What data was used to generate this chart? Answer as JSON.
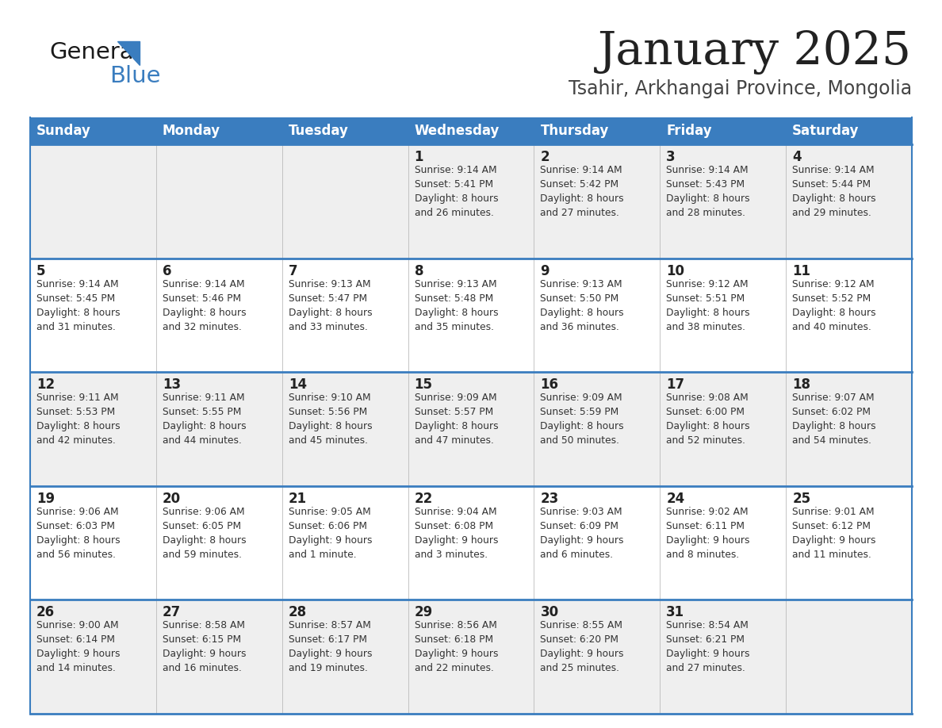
{
  "title": "January 2025",
  "subtitle": "Tsahir, Arkhangai Province, Mongolia",
  "days_of_week": [
    "Sunday",
    "Monday",
    "Tuesday",
    "Wednesday",
    "Thursday",
    "Friday",
    "Saturday"
  ],
  "header_bg": "#3a7dbf",
  "header_text": "#ffffff",
  "row_bg_odd": "#efefef",
  "row_bg_even": "#ffffff",
  "cell_text_color": "#333333",
  "day_num_color": "#222222",
  "border_color": "#3a7dbf",
  "title_color": "#222222",
  "subtitle_color": "#444444",
  "logo_general_color": "#1a1a1a",
  "logo_blue_color": "#3a7dbf",
  "logo_triangle_color": "#3a7dbf",
  "calendar": [
    [
      {
        "day": "",
        "info": ""
      },
      {
        "day": "",
        "info": ""
      },
      {
        "day": "",
        "info": ""
      },
      {
        "day": "1",
        "info": "Sunrise: 9:14 AM\nSunset: 5:41 PM\nDaylight: 8 hours\nand 26 minutes."
      },
      {
        "day": "2",
        "info": "Sunrise: 9:14 AM\nSunset: 5:42 PM\nDaylight: 8 hours\nand 27 minutes."
      },
      {
        "day": "3",
        "info": "Sunrise: 9:14 AM\nSunset: 5:43 PM\nDaylight: 8 hours\nand 28 minutes."
      },
      {
        "day": "4",
        "info": "Sunrise: 9:14 AM\nSunset: 5:44 PM\nDaylight: 8 hours\nand 29 minutes."
      }
    ],
    [
      {
        "day": "5",
        "info": "Sunrise: 9:14 AM\nSunset: 5:45 PM\nDaylight: 8 hours\nand 31 minutes."
      },
      {
        "day": "6",
        "info": "Sunrise: 9:14 AM\nSunset: 5:46 PM\nDaylight: 8 hours\nand 32 minutes."
      },
      {
        "day": "7",
        "info": "Sunrise: 9:13 AM\nSunset: 5:47 PM\nDaylight: 8 hours\nand 33 minutes."
      },
      {
        "day": "8",
        "info": "Sunrise: 9:13 AM\nSunset: 5:48 PM\nDaylight: 8 hours\nand 35 minutes."
      },
      {
        "day": "9",
        "info": "Sunrise: 9:13 AM\nSunset: 5:50 PM\nDaylight: 8 hours\nand 36 minutes."
      },
      {
        "day": "10",
        "info": "Sunrise: 9:12 AM\nSunset: 5:51 PM\nDaylight: 8 hours\nand 38 minutes."
      },
      {
        "day": "11",
        "info": "Sunrise: 9:12 AM\nSunset: 5:52 PM\nDaylight: 8 hours\nand 40 minutes."
      }
    ],
    [
      {
        "day": "12",
        "info": "Sunrise: 9:11 AM\nSunset: 5:53 PM\nDaylight: 8 hours\nand 42 minutes."
      },
      {
        "day": "13",
        "info": "Sunrise: 9:11 AM\nSunset: 5:55 PM\nDaylight: 8 hours\nand 44 minutes."
      },
      {
        "day": "14",
        "info": "Sunrise: 9:10 AM\nSunset: 5:56 PM\nDaylight: 8 hours\nand 45 minutes."
      },
      {
        "day": "15",
        "info": "Sunrise: 9:09 AM\nSunset: 5:57 PM\nDaylight: 8 hours\nand 47 minutes."
      },
      {
        "day": "16",
        "info": "Sunrise: 9:09 AM\nSunset: 5:59 PM\nDaylight: 8 hours\nand 50 minutes."
      },
      {
        "day": "17",
        "info": "Sunrise: 9:08 AM\nSunset: 6:00 PM\nDaylight: 8 hours\nand 52 minutes."
      },
      {
        "day": "18",
        "info": "Sunrise: 9:07 AM\nSunset: 6:02 PM\nDaylight: 8 hours\nand 54 minutes."
      }
    ],
    [
      {
        "day": "19",
        "info": "Sunrise: 9:06 AM\nSunset: 6:03 PM\nDaylight: 8 hours\nand 56 minutes."
      },
      {
        "day": "20",
        "info": "Sunrise: 9:06 AM\nSunset: 6:05 PM\nDaylight: 8 hours\nand 59 minutes."
      },
      {
        "day": "21",
        "info": "Sunrise: 9:05 AM\nSunset: 6:06 PM\nDaylight: 9 hours\nand 1 minute."
      },
      {
        "day": "22",
        "info": "Sunrise: 9:04 AM\nSunset: 6:08 PM\nDaylight: 9 hours\nand 3 minutes."
      },
      {
        "day": "23",
        "info": "Sunrise: 9:03 AM\nSunset: 6:09 PM\nDaylight: 9 hours\nand 6 minutes."
      },
      {
        "day": "24",
        "info": "Sunrise: 9:02 AM\nSunset: 6:11 PM\nDaylight: 9 hours\nand 8 minutes."
      },
      {
        "day": "25",
        "info": "Sunrise: 9:01 AM\nSunset: 6:12 PM\nDaylight: 9 hours\nand 11 minutes."
      }
    ],
    [
      {
        "day": "26",
        "info": "Sunrise: 9:00 AM\nSunset: 6:14 PM\nDaylight: 9 hours\nand 14 minutes."
      },
      {
        "day": "27",
        "info": "Sunrise: 8:58 AM\nSunset: 6:15 PM\nDaylight: 9 hours\nand 16 minutes."
      },
      {
        "day": "28",
        "info": "Sunrise: 8:57 AM\nSunset: 6:17 PM\nDaylight: 9 hours\nand 19 minutes."
      },
      {
        "day": "29",
        "info": "Sunrise: 8:56 AM\nSunset: 6:18 PM\nDaylight: 9 hours\nand 22 minutes."
      },
      {
        "day": "30",
        "info": "Sunrise: 8:55 AM\nSunset: 6:20 PM\nDaylight: 9 hours\nand 25 minutes."
      },
      {
        "day": "31",
        "info": "Sunrise: 8:54 AM\nSunset: 6:21 PM\nDaylight: 9 hours\nand 27 minutes."
      },
      {
        "day": "",
        "info": ""
      }
    ]
  ]
}
